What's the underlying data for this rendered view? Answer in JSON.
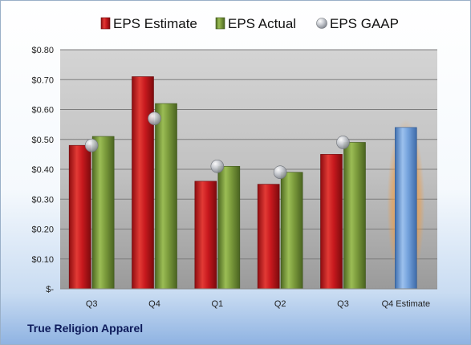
{
  "company": "True Religion Apparel",
  "chart_data": {
    "type": "bar",
    "categories": [
      "Q3",
      "Q4",
      "Q1",
      "Q2",
      "Q3",
      "Q4 Estimate"
    ],
    "series": [
      {
        "name": "EPS Estimate",
        "values": [
          0.48,
          0.71,
          0.36,
          0.35,
          0.45,
          null
        ],
        "color": "#c0161c"
      },
      {
        "name": "EPS Actual",
        "values": [
          0.51,
          0.62,
          0.41,
          0.39,
          0.49,
          null
        ],
        "color": "#76953a"
      },
      {
        "name": "EPS GAAP",
        "type": "scatter",
        "values": [
          0.48,
          0.57,
          0.41,
          0.39,
          0.49,
          null
        ],
        "color": "#b8bcc4"
      }
    ],
    "highlight": {
      "category": "Q4 Estimate",
      "value": 0.54,
      "color": "#6f9fd8",
      "glow": "#f4a24a"
    },
    "ylim": [
      0,
      0.8
    ],
    "yticks": [
      {
        "value": 0.8,
        "label": "$0.80"
      },
      {
        "value": 0.7,
        "label": "$0.70"
      },
      {
        "value": 0.6,
        "label": "$0.60"
      },
      {
        "value": 0.5,
        "label": "$0.50"
      },
      {
        "value": 0.4,
        "label": "$0.40"
      },
      {
        "value": 0.3,
        "label": "$0.30"
      },
      {
        "value": 0.2,
        "label": "$0.20"
      },
      {
        "value": 0.1,
        "label": "$0.10"
      },
      {
        "value": 0,
        "label": "$-"
      }
    ],
    "grid": true,
    "legend_position": "top",
    "plot_background": "gradient gray"
  }
}
